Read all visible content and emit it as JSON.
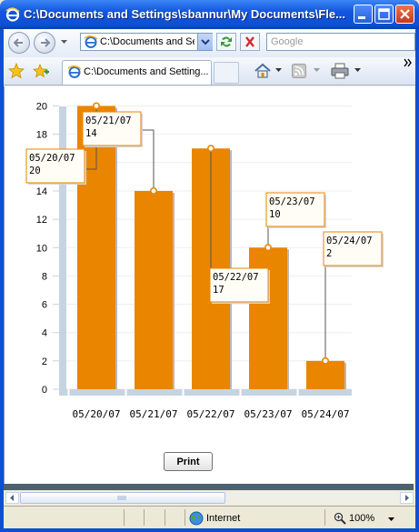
{
  "window": {
    "title": "C:\\Documents and Settings\\sbannur\\My Documents\\Fle..."
  },
  "toolbar": {
    "address_value": "C:\\Documents and Se",
    "search_placeholder": "Google"
  },
  "tab": {
    "title": "C:\\Documents and Setting..."
  },
  "chart_data": {
    "type": "bar",
    "categories": [
      "05/20/07",
      "05/21/07",
      "05/22/07",
      "05/23/07",
      "05/24/07"
    ],
    "values": [
      20,
      14,
      17,
      10,
      2
    ],
    "ylim": [
      0,
      20
    ],
    "yticks": [
      0,
      2,
      4,
      6,
      8,
      10,
      12,
      14,
      16,
      18,
      20
    ],
    "tick_labels": [
      "0",
      "2",
      "4",
      "6",
      "8",
      "10",
      "12",
      "14",
      "16",
      "18",
      "20"
    ],
    "bar_color": "#ea8500",
    "datatips": [
      {
        "date": "05/20/07",
        "value": "20"
      },
      {
        "date": "05/21/07",
        "value": "14"
      },
      {
        "date": "05/22/07",
        "value": "17"
      },
      {
        "date": "05/23/07",
        "value": "10"
      },
      {
        "date": "05/24/07",
        "value": "2"
      }
    ]
  },
  "page": {
    "print_label": "Print"
  },
  "status": {
    "zone": "Internet",
    "zoom": "100%"
  }
}
